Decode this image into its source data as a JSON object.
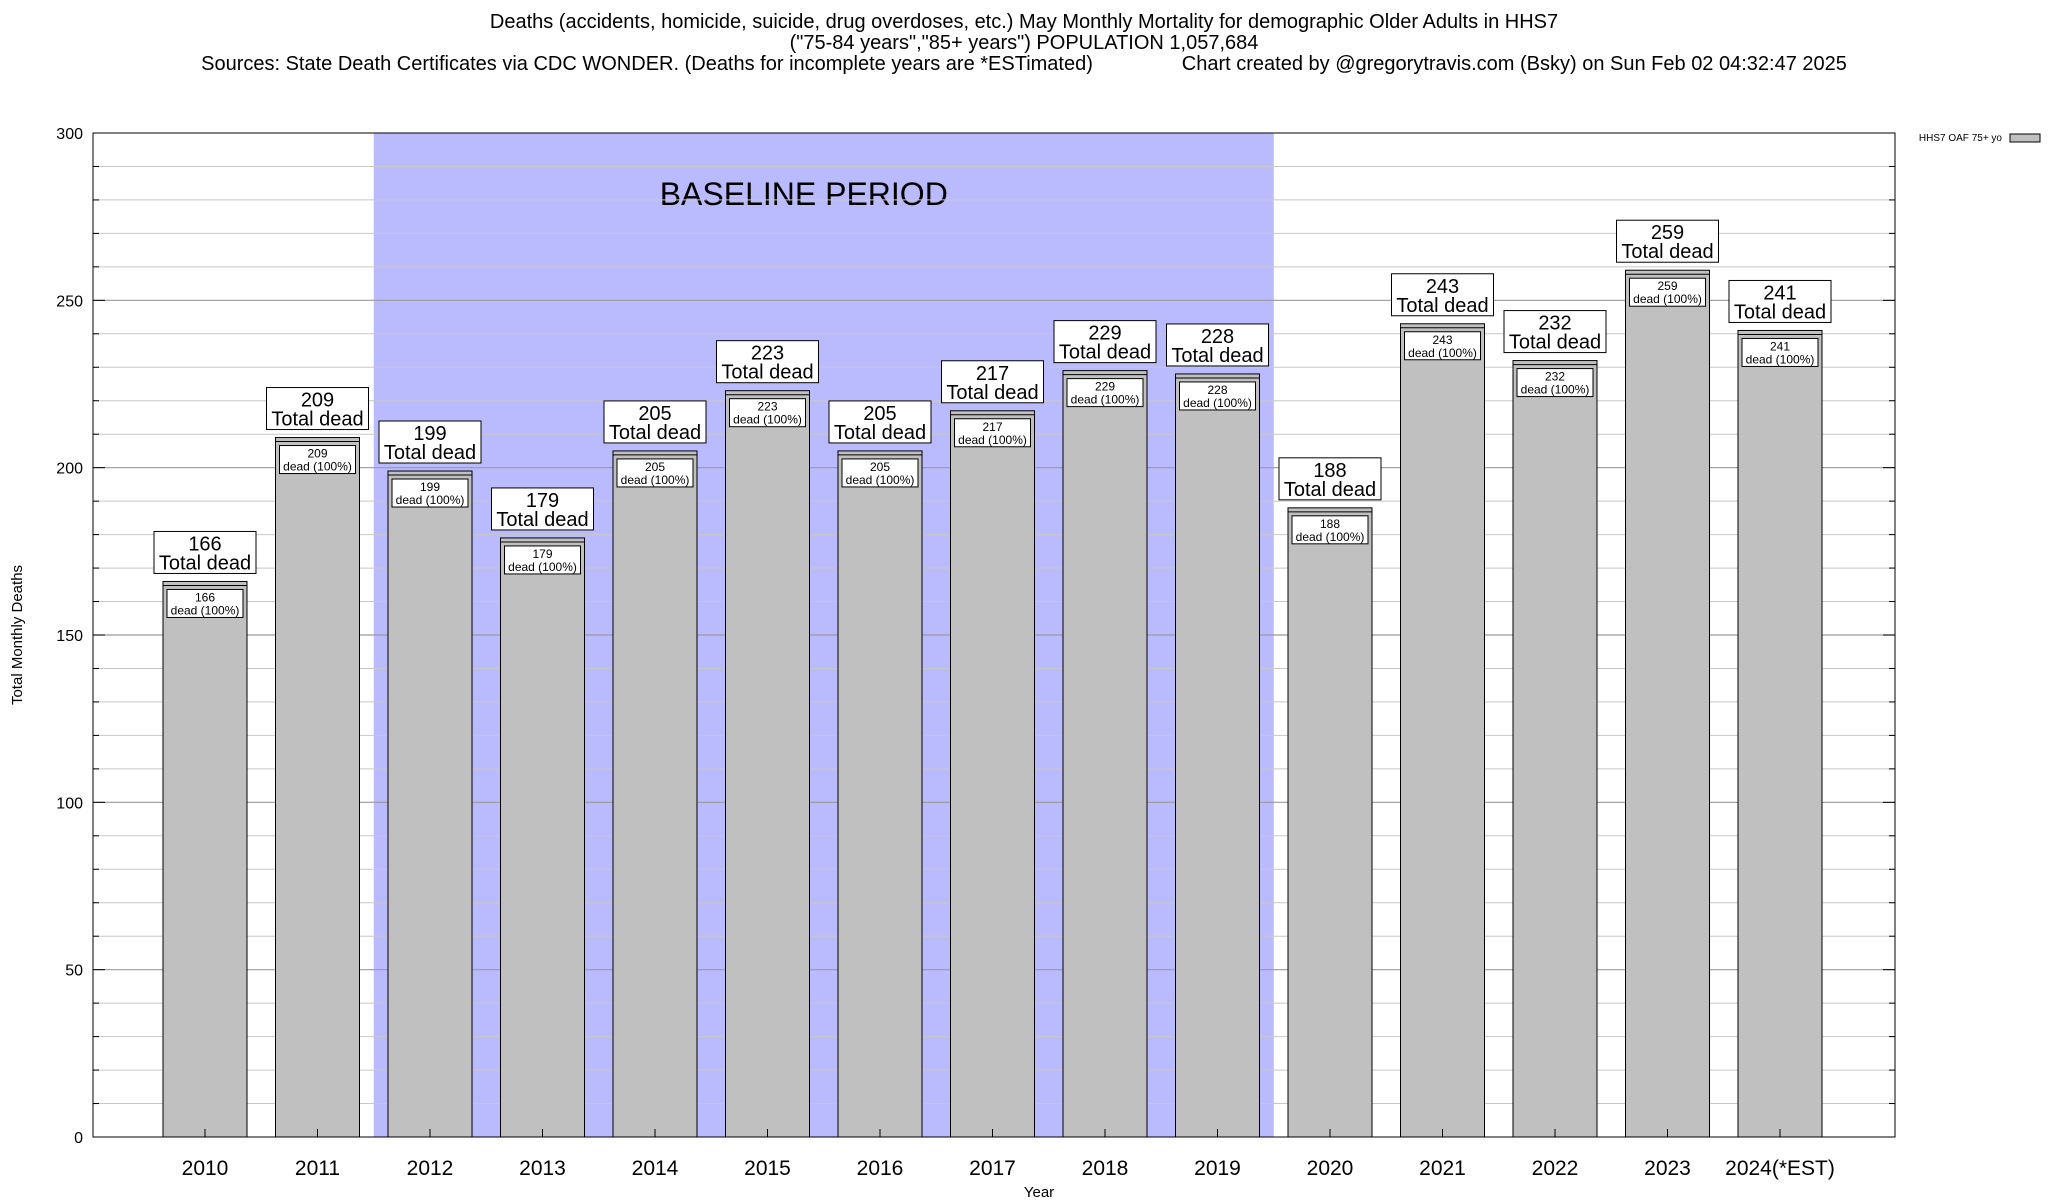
{
  "chart_data": {
    "type": "bar",
    "title_lines": [
      "Deaths (accidents, homicide, suicide, drug overdoses, etc.) May Monthly Mortality for demographic Older Adults in HHS7",
      "(\"75-84 years\",\"85+ years\") POPULATION 1,057,684",
      "Sources: State Death Certificates via CDC WONDER. (Deaths for incomplete years are *ESTimated)                Chart created by @gregorytravis.com (Bsky) on Sun Feb 02 04:32:47 2025"
    ],
    "xlabel": "Year",
    "ylabel": "Total Monthly Deaths",
    "ylim": [
      0,
      300
    ],
    "yticks": [
      0,
      50,
      100,
      150,
      200,
      250,
      300
    ],
    "grid": true,
    "legend": {
      "placement": "top-right",
      "label": "HHS7 OAF 75+ yo",
      "color": "#c0c0c0"
    },
    "categories": [
      "2010",
      "2011",
      "2012",
      "2013",
      "2014",
      "2015",
      "2016",
      "2017",
      "2018",
      "2019",
      "2020",
      "2021",
      "2022",
      "2023",
      "2024(*EST)"
    ],
    "values": [
      166,
      209,
      199,
      179,
      205,
      223,
      205,
      217,
      229,
      228,
      188,
      243,
      232,
      259,
      241
    ],
    "total_suffix": "Total dead",
    "segment_suffix": "dead (100%)",
    "baseline": {
      "label": "BASELINE PERIOD",
      "from": "2012",
      "to": "2019",
      "color": "#babaff"
    },
    "bar_color": "#c0c0c0"
  }
}
